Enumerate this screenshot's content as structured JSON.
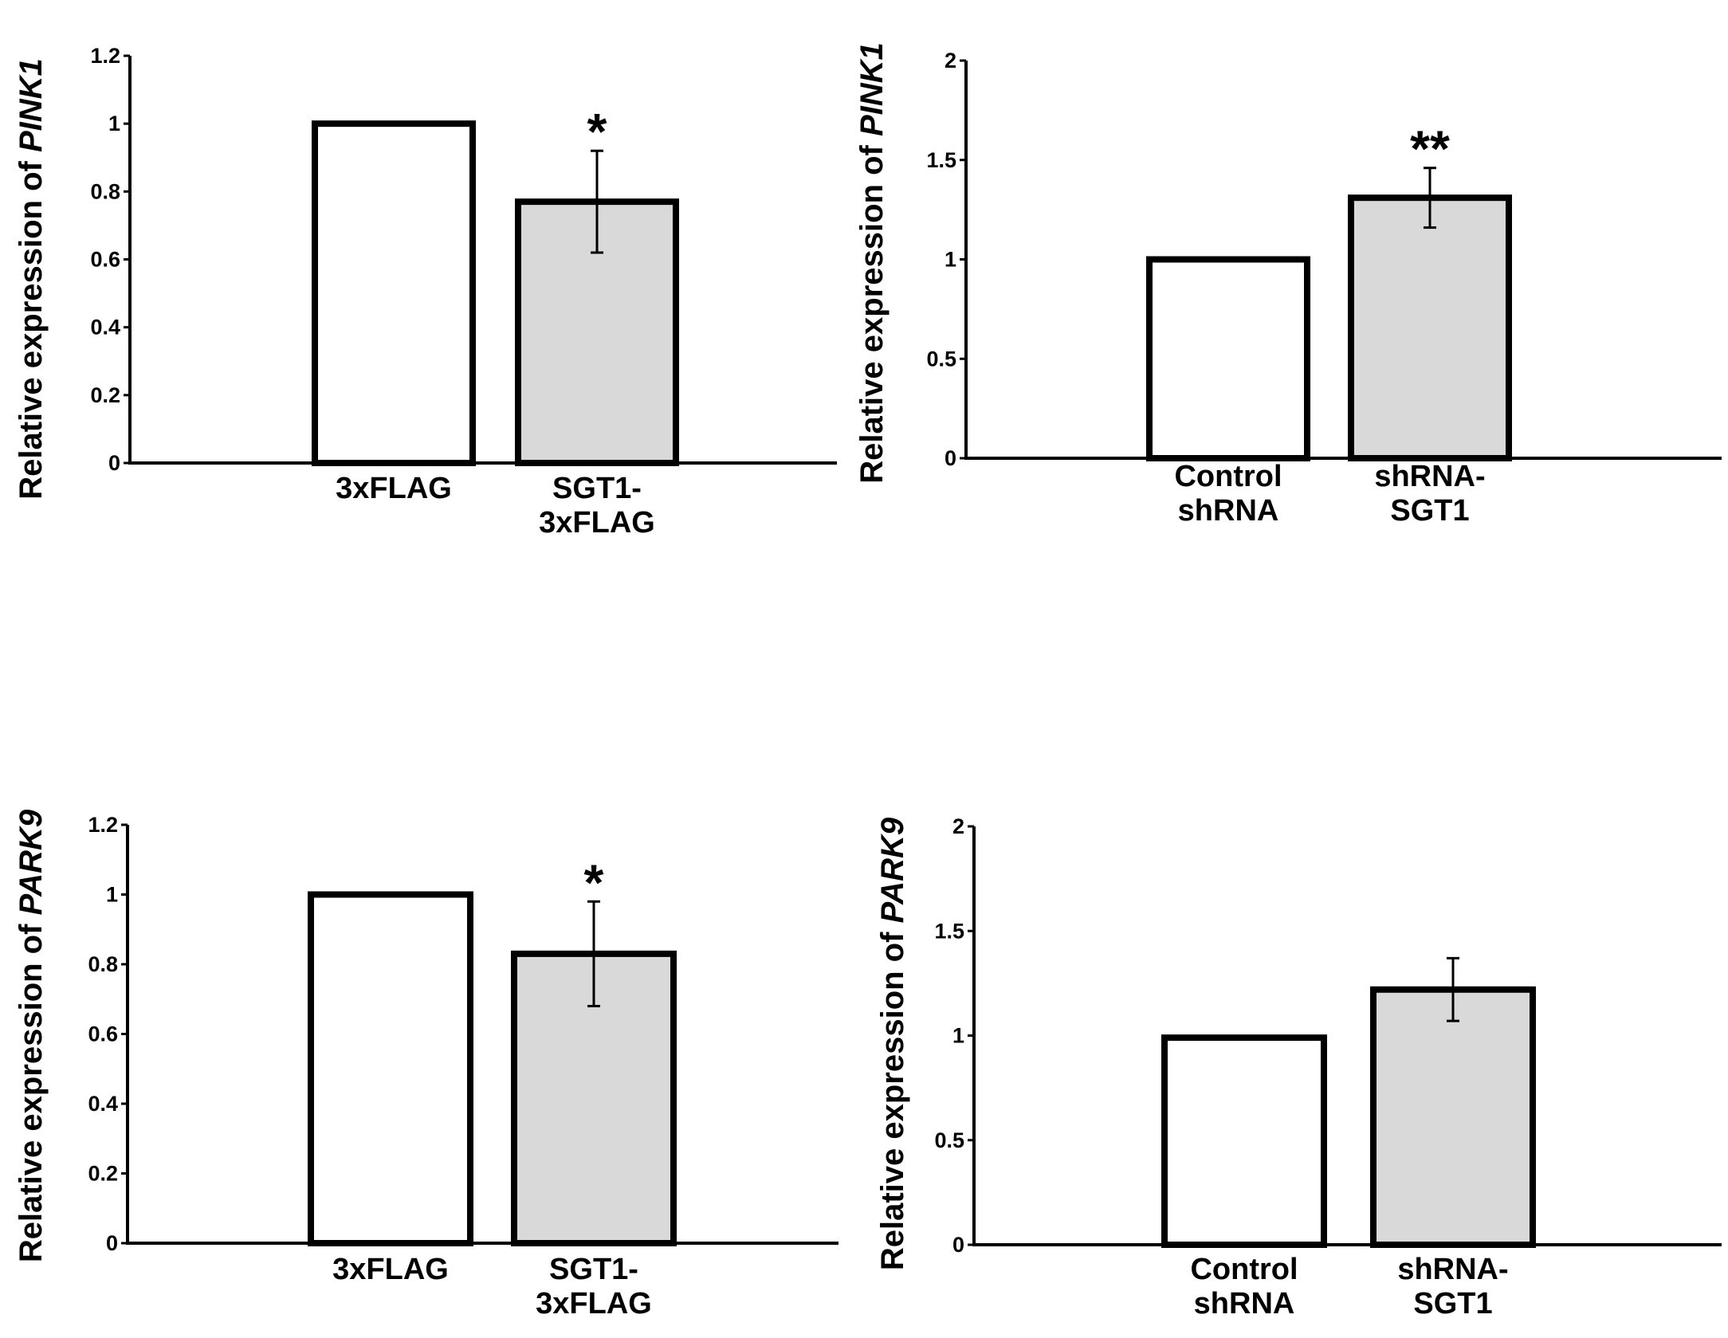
{
  "chart_data": [
    {
      "type": "bar",
      "panel": "top-left",
      "ylabel_prefix": "Relative expression of ",
      "ylabel_gene": "PINK1",
      "ylim": [
        0,
        1.2
      ],
      "yticks": [
        0,
        0.2,
        0.4,
        0.6,
        0.8,
        1,
        1.2
      ],
      "ytick_labels": [
        "0",
        "0.2",
        "0.4",
        "0.6",
        "0.8",
        "1",
        "1.2"
      ],
      "categories": [
        [
          "3xFLAG"
        ],
        [
          "SGT1-",
          "3xFLAG"
        ]
      ],
      "values": [
        1.0,
        0.77
      ],
      "errors": [
        null,
        0.15
      ],
      "fill_colors": [
        "#ffffff",
        "#d9d9d9"
      ],
      "significance": [
        "",
        "*"
      ]
    },
    {
      "type": "bar",
      "panel": "top-right",
      "ylabel_prefix": "Relative expression of ",
      "ylabel_gene": "PINK1",
      "ylim": [
        0,
        2
      ],
      "yticks": [
        0,
        0.5,
        1,
        1.5,
        2
      ],
      "ytick_labels": [
        "0",
        "0.5",
        "1",
        "1.5",
        "2"
      ],
      "categories": [
        [
          "Control",
          "shRNA"
        ],
        [
          "shRNA-",
          "SGT1"
        ]
      ],
      "values": [
        1.0,
        1.31
      ],
      "errors": [
        null,
        0.15
      ],
      "fill_colors": [
        "#ffffff",
        "#d9d9d9"
      ],
      "significance": [
        "",
        "**"
      ]
    },
    {
      "type": "bar",
      "panel": "bottom-left",
      "ylabel_prefix": "Relative expression of ",
      "ylabel_gene": "PARK9",
      "ylim": [
        0,
        1.2
      ],
      "yticks": [
        0,
        0.2,
        0.4,
        0.6,
        0.8,
        1,
        1.2
      ],
      "ytick_labels": [
        "0",
        "0.2",
        "0.4",
        "0.6",
        "0.8",
        "1",
        "1.2"
      ],
      "categories": [
        [
          "3xFLAG"
        ],
        [
          "SGT1-",
          "3xFLAG"
        ]
      ],
      "values": [
        1.0,
        0.83
      ],
      "errors": [
        null,
        0.15
      ],
      "fill_colors": [
        "#ffffff",
        "#d9d9d9"
      ],
      "significance": [
        "",
        "*"
      ]
    },
    {
      "type": "bar",
      "panel": "bottom-right",
      "ylabel_prefix": "Relative expression of ",
      "ylabel_gene": "PARK9",
      "ylim": [
        0,
        2
      ],
      "yticks": [
        0,
        0.5,
        1,
        1.5,
        2
      ],
      "ytick_labels": [
        "0",
        "0.5",
        "1",
        "1.5",
        "2"
      ],
      "categories": [
        [
          "Control",
          "shRNA"
        ],
        [
          "shRNA-",
          "SGT1"
        ]
      ],
      "values": [
        0.99,
        1.22
      ],
      "errors": [
        null,
        0.15
      ],
      "fill_colors": [
        "#ffffff",
        "#d9d9d9"
      ],
      "significance": [
        "",
        ""
      ]
    }
  ]
}
